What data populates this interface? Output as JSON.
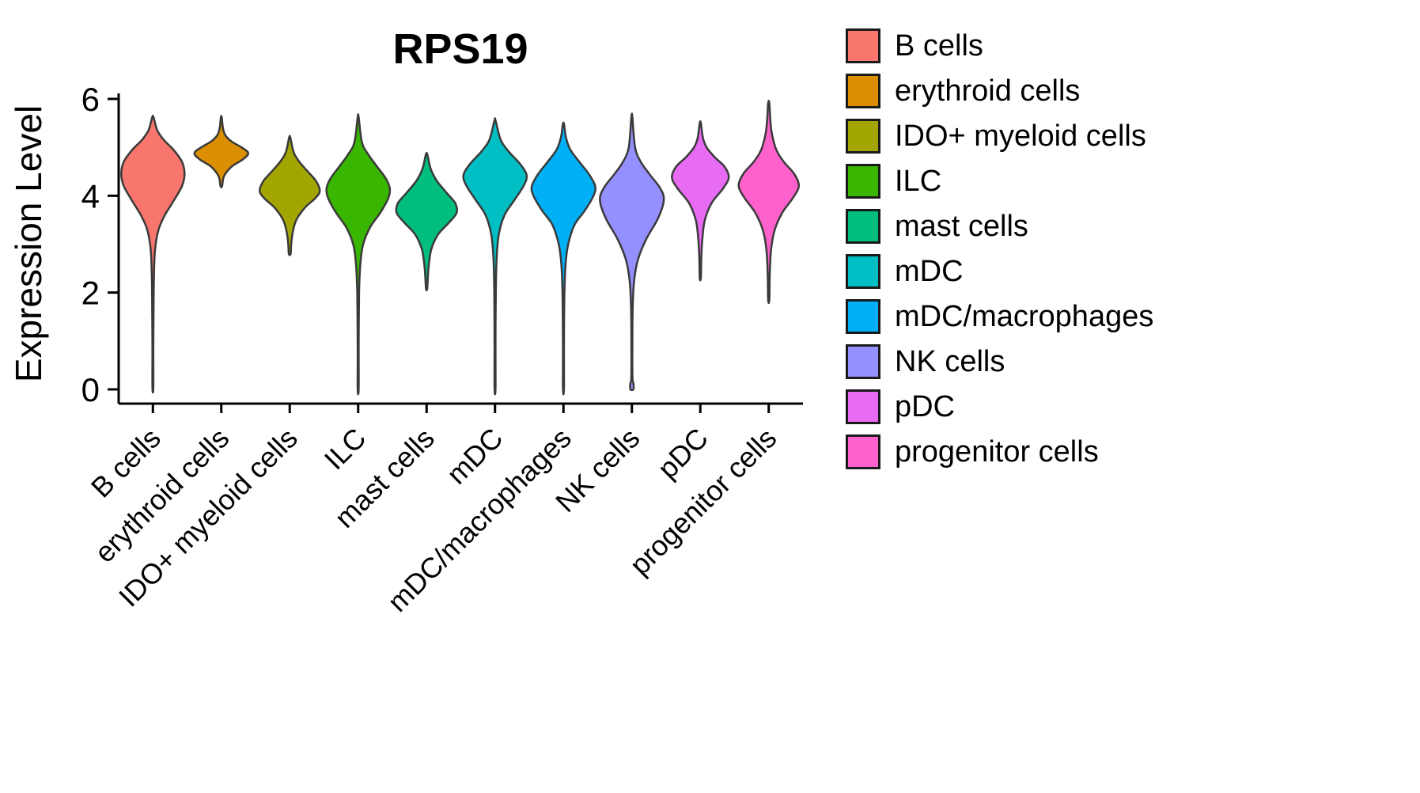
{
  "chart_data": {
    "type": "violin",
    "title": "RPS19",
    "xlabel": "",
    "ylabel": "Expression Level",
    "yticks": [
      0,
      2,
      4,
      6
    ],
    "ylim": [
      0,
      6.2
    ],
    "grid": false,
    "legend_position": "right",
    "outline_color": "#3a3a3a",
    "axis_color": "#000000",
    "categories": [
      "B cells",
      "erythroid cells",
      "IDO+ myeloid cells",
      "ILC",
      "mast cells",
      "mDC",
      "mDC/macrophages",
      "NK cells",
      "pDC",
      "progenitor cells"
    ],
    "series": [
      {
        "name": "B cells",
        "color": "#F8766D",
        "hw": 40,
        "profile": [
          [
            0.03,
            0.015
          ],
          [
            0.8,
            0.015
          ],
          [
            1.6,
            0.02
          ],
          [
            2.4,
            0.035
          ],
          [
            2.9,
            0.07
          ],
          [
            3.3,
            0.18
          ],
          [
            3.6,
            0.38
          ],
          [
            3.9,
            0.66
          ],
          [
            4.2,
            0.92
          ],
          [
            4.45,
            1.0
          ],
          [
            4.7,
            0.92
          ],
          [
            4.95,
            0.65
          ],
          [
            5.15,
            0.35
          ],
          [
            5.35,
            0.14
          ],
          [
            5.62,
            0.02
          ]
        ]
      },
      {
        "name": "erythroid cells",
        "color": "#DB8E00",
        "hw": 34,
        "profile": [
          [
            4.2,
            0.03
          ],
          [
            4.4,
            0.1
          ],
          [
            4.6,
            0.38
          ],
          [
            4.75,
            0.8
          ],
          [
            4.88,
            1.0
          ],
          [
            5.0,
            0.75
          ],
          [
            5.12,
            0.38
          ],
          [
            5.25,
            0.15
          ],
          [
            5.4,
            0.06
          ],
          [
            5.62,
            0.015
          ]
        ]
      },
      {
        "name": "IDO+ myeloid cells",
        "color": "#A3A500",
        "hw": 38,
        "profile": [
          [
            2.8,
            0.03
          ],
          [
            3.0,
            0.05
          ],
          [
            3.25,
            0.1
          ],
          [
            3.5,
            0.22
          ],
          [
            3.75,
            0.5
          ],
          [
            3.95,
            0.85
          ],
          [
            4.1,
            1.0
          ],
          [
            4.3,
            0.88
          ],
          [
            4.5,
            0.6
          ],
          [
            4.7,
            0.32
          ],
          [
            4.9,
            0.13
          ],
          [
            5.2,
            0.02
          ]
        ]
      },
      {
        "name": "ILC",
        "color": "#39B600",
        "hw": 40,
        "profile": [
          [
            0.02,
            0.015
          ],
          [
            1.0,
            0.015
          ],
          [
            2.0,
            0.03
          ],
          [
            2.6,
            0.07
          ],
          [
            3.0,
            0.16
          ],
          [
            3.35,
            0.38
          ],
          [
            3.65,
            0.7
          ],
          [
            3.95,
            0.95
          ],
          [
            4.15,
            1.0
          ],
          [
            4.35,
            0.88
          ],
          [
            4.6,
            0.6
          ],
          [
            4.85,
            0.32
          ],
          [
            5.1,
            0.12
          ],
          [
            5.62,
            0.015
          ]
        ]
      },
      {
        "name": "mast cells",
        "color": "#00BF7D",
        "hw": 38,
        "profile": [
          [
            2.08,
            0.02
          ],
          [
            2.35,
            0.045
          ],
          [
            2.6,
            0.08
          ],
          [
            2.9,
            0.16
          ],
          [
            3.2,
            0.38
          ],
          [
            3.45,
            0.75
          ],
          [
            3.65,
            1.0
          ],
          [
            3.85,
            0.95
          ],
          [
            4.05,
            0.68
          ],
          [
            4.3,
            0.35
          ],
          [
            4.55,
            0.14
          ],
          [
            4.85,
            0.025
          ]
        ]
      },
      {
        "name": "mDC",
        "color": "#00BFC4",
        "hw": 40,
        "profile": [
          [
            0.02,
            0.015
          ],
          [
            1.0,
            0.015
          ],
          [
            2.0,
            0.025
          ],
          [
            2.7,
            0.05
          ],
          [
            3.2,
            0.12
          ],
          [
            3.6,
            0.3
          ],
          [
            3.9,
            0.6
          ],
          [
            4.2,
            0.9
          ],
          [
            4.42,
            1.0
          ],
          [
            4.65,
            0.8
          ],
          [
            4.9,
            0.45
          ],
          [
            5.15,
            0.18
          ],
          [
            5.55,
            0.02
          ]
        ]
      },
      {
        "name": "mDC/macrophages",
        "color": "#00B0F6",
        "hw": 40,
        "profile": [
          [
            0.02,
            0.015
          ],
          [
            1.0,
            0.015
          ],
          [
            2.0,
            0.03
          ],
          [
            2.6,
            0.07
          ],
          [
            3.0,
            0.15
          ],
          [
            3.4,
            0.35
          ],
          [
            3.7,
            0.68
          ],
          [
            4.0,
            0.95
          ],
          [
            4.2,
            1.0
          ],
          [
            4.45,
            0.8
          ],
          [
            4.7,
            0.5
          ],
          [
            4.95,
            0.22
          ],
          [
            5.2,
            0.08
          ],
          [
            5.48,
            0.02
          ]
        ]
      },
      {
        "name": "NK cells",
        "color": "#9590FF",
        "hw": 40,
        "profile": [
          [
            0.0,
            0.05
          ],
          [
            0.12,
            0.05
          ],
          [
            0.25,
            0.02
          ],
          [
            1.0,
            0.015
          ],
          [
            1.8,
            0.03
          ],
          [
            2.3,
            0.08
          ],
          [
            2.7,
            0.2
          ],
          [
            3.1,
            0.45
          ],
          [
            3.5,
            0.8
          ],
          [
            3.8,
            0.98
          ],
          [
            4.0,
            1.0
          ],
          [
            4.2,
            0.85
          ],
          [
            4.45,
            0.55
          ],
          [
            4.7,
            0.28
          ],
          [
            5.0,
            0.1
          ],
          [
            5.62,
            0.015
          ]
        ]
      },
      {
        "name": "pDC",
        "color": "#E76BF3",
        "hw": 36,
        "profile": [
          [
            2.3,
            0.02
          ],
          [
            2.7,
            0.035
          ],
          [
            3.1,
            0.07
          ],
          [
            3.5,
            0.16
          ],
          [
            3.85,
            0.4
          ],
          [
            4.15,
            0.8
          ],
          [
            4.38,
            1.0
          ],
          [
            4.6,
            0.85
          ],
          [
            4.8,
            0.5
          ],
          [
            5.0,
            0.22
          ],
          [
            5.2,
            0.09
          ],
          [
            5.5,
            0.02
          ]
        ]
      },
      {
        "name": "progenitor cells",
        "color": "#FF61CC",
        "hw": 38,
        "profile": [
          [
            1.85,
            0.02
          ],
          [
            2.4,
            0.035
          ],
          [
            2.9,
            0.08
          ],
          [
            3.3,
            0.2
          ],
          [
            3.65,
            0.45
          ],
          [
            3.95,
            0.8
          ],
          [
            4.2,
            1.0
          ],
          [
            4.45,
            0.85
          ],
          [
            4.7,
            0.5
          ],
          [
            4.95,
            0.25
          ],
          [
            5.3,
            0.1
          ],
          [
            5.6,
            0.05
          ],
          [
            5.92,
            0.02
          ]
        ]
      }
    ]
  }
}
